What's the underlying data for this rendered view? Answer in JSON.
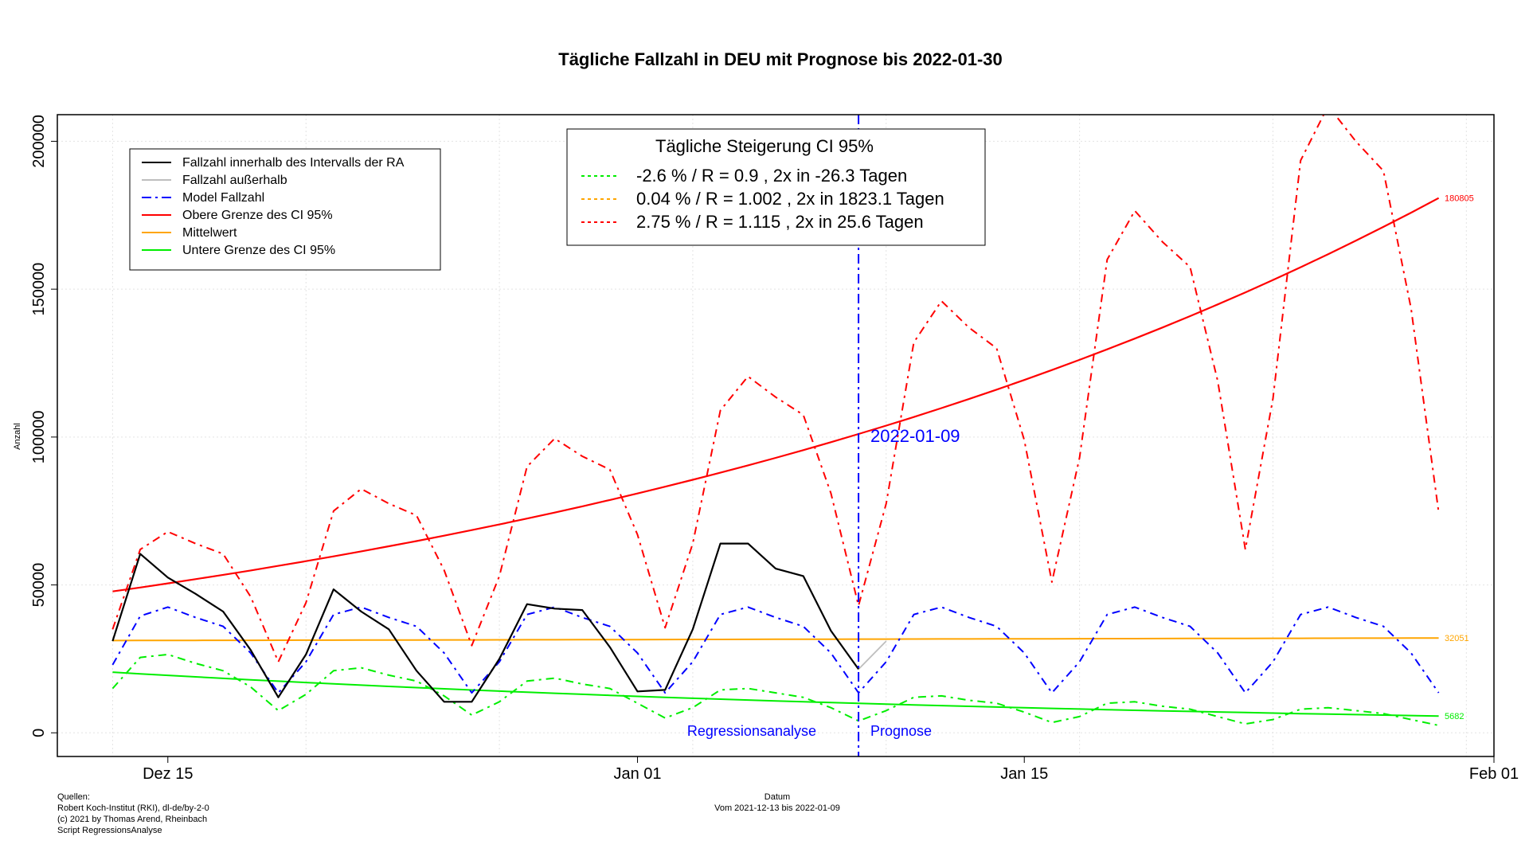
{
  "chart_data": {
    "type": "line",
    "title": "Tägliche Fallzahl in DEU mit Prognose bis 2022-01-30",
    "xlabel": "Datum",
    "xsubtitle": "Vom 2021-12-13 bis 2022-01-09",
    "ylabel": "Anzahl",
    "x_start": "2021-12-13",
    "x_end": "2022-01-30",
    "xlim": [
      "2021-12-11",
      "2022-02-01"
    ],
    "ylim": [
      -8000,
      209000
    ],
    "y_ticks": [
      0,
      50000,
      100000,
      150000,
      200000
    ],
    "y_tick_labels": [
      "0",
      "50000",
      "100000",
      "150000",
      "200000"
    ],
    "x_ticks": [
      {
        "date": "2021-12-15",
        "label": "Dez 15"
      },
      {
        "date": "2022-01-01",
        "label": "Jan 01"
      },
      {
        "date": "2022-01-15",
        "label": "Jan 15"
      },
      {
        "date": "2022-02-01",
        "label": "Feb 01"
      }
    ],
    "grid": true,
    "divider": {
      "date": "2022-01-09",
      "label": "2022-01-09",
      "left_label": "Regressionsanalyse",
      "right_label": "Prognose"
    },
    "legend": [
      {
        "label": "Fallzahl innerhalb des Intervalls der RA",
        "color": "#000000",
        "dash": "solid"
      },
      {
        "label": "Fallzahl außerhalb",
        "color": "#bebebe",
        "dash": "solid"
      },
      {
        "label": "Model Fallzahl",
        "color": "#0000ff",
        "dash": "dashdot"
      },
      {
        "label": "Obere Grenze des CI 95%",
        "color": "#ff0000",
        "dash": "solid"
      },
      {
        "label": "Mittelwert",
        "color": "#ffa500",
        "dash": "solid"
      },
      {
        "label": "Untere Grenze des CI 95%",
        "color": "#00ee00",
        "dash": "solid"
      }
    ],
    "ci_box": {
      "title": "Tägliche Steigerung CI  95%",
      "rows": [
        {
          "label": "-2.6 % / R = 0.9 , 2x in -26.3 Tagen",
          "color": "#00ee00"
        },
        {
          "label": "0.04 % / R = 1.002 , 2x in 1823.1 Tagen",
          "color": "#ffa500"
        },
        {
          "label": "2.75 % / R = 1.115 , 2x in 25.6 Tagen",
          "color": "#ff0000"
        }
      ]
    },
    "end_labels": {
      "upper": "180805",
      "mean": "32051",
      "lower": "5682"
    },
    "series": [
      {
        "name": "Fallzahl innerhalb des Intervalls der RA",
        "color": "#000000",
        "values": [
          31000,
          60500,
          52500,
          47000,
          41000,
          28000,
          12000,
          26500,
          48500,
          41000,
          35000,
          21000,
          10500,
          10500,
          25000,
          43500,
          42000,
          41500,
          29000,
          14000,
          14500,
          35000,
          64000,
          64000,
          55500,
          53000,
          34500,
          21500
        ]
      },
      {
        "name": "Fallzahl außerhalb",
        "color": "#bebebe",
        "values": [
          21500,
          31000
        ]
      },
      {
        "name": "Model Fallzahl",
        "color": "#0000ff",
        "values": [
          23000,
          39500,
          42500,
          39000,
          36000,
          27000,
          13500,
          24000,
          40000,
          42500,
          39000,
          36000,
          27000,
          13500,
          24000,
          40000,
          42500,
          39000,
          36000,
          27000,
          13500,
          24000,
          40000,
          42500,
          39000,
          36000,
          27000,
          13500,
          24000,
          40000,
          42500,
          39000,
          36000,
          27000,
          13500,
          24000,
          40000,
          42500,
          39000,
          36000,
          27000,
          13500,
          24000,
          40000,
          42500,
          39000,
          36000,
          27000,
          13500
        ]
      },
      {
        "name": "Upper model",
        "color": "#ff0000",
        "values": [
          35000,
          62000,
          68000,
          64000,
          60500,
          46000,
          24000,
          44000,
          75000,
          82500,
          77500,
          73500,
          55000,
          29500,
          53000,
          90000,
          99500,
          93500,
          89000,
          67000,
          35500,
          64000,
          109000,
          120500,
          113500,
          107500,
          81000,
          43000,
          77500,
          132000,
          146000,
          137000,
          130000,
          99000,
          51000,
          93000,
          160000,
          176500,
          166000,
          157500,
          119000,
          62000,
          113000,
          193500,
          212000,
          200000,
          190000,
          143500,
          74500
        ]
      },
      {
        "name": "Lower model",
        "color": "#00ee00",
        "values": [
          15000,
          25500,
          26500,
          23500,
          21000,
          15500,
          7500,
          13000,
          21000,
          22000,
          19500,
          17500,
          12500,
          6000,
          10500,
          17500,
          18500,
          16500,
          15000,
          10000,
          5000,
          8500,
          14500,
          15000,
          13500,
          12000,
          8500,
          4000,
          7500,
          12000,
          12500,
          11000,
          10000,
          7000,
          3500,
          5500,
          10000,
          10500,
          9000,
          8000,
          5500,
          3000,
          4500,
          8000,
          8500,
          7500,
          6500,
          4500,
          2500
        ]
      }
    ],
    "trend": {
      "upper": {
        "start": 47800,
        "end": 180805,
        "color": "#ff0000"
      },
      "mean": {
        "start": 31200,
        "end": 32051,
        "color": "#ffa500"
      },
      "lower": {
        "start": 20500,
        "end": 5682,
        "color": "#00ee00"
      }
    }
  },
  "sources": {
    "line1": "Quellen:",
    "line2": "Robert Koch-Institut (RKI), dl-de/by-2-0",
    "line3": "(c) 2021 by Thomas Arend, Rheinbach",
    "line4": "Script RegressionsAnalyse"
  }
}
